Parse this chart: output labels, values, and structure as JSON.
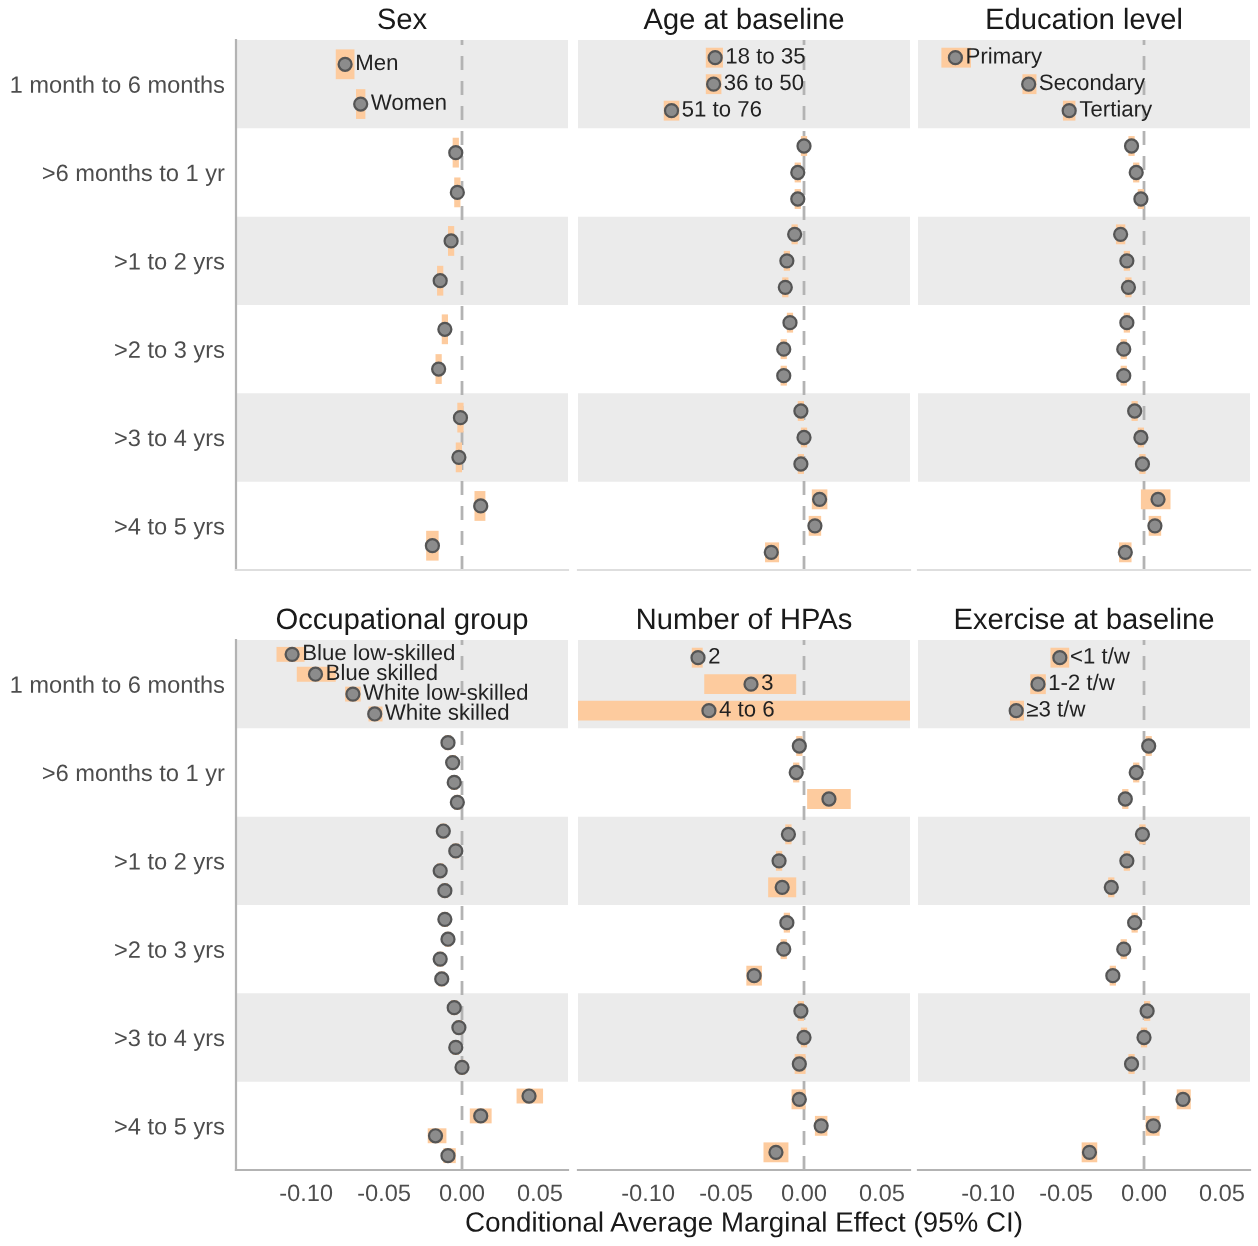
{
  "chart_data": [
    {
      "type": "scatter",
      "orientation": "horizontal",
      "title": "Sex",
      "tick_labels": "y",
      "marker": "circle",
      "grid": false,
      "categories": [
        "1 month to 6 months",
        ">6 months to 1 yr",
        ">1 to 2 yrs",
        ">2 to 3 yrs",
        ">3 to 4 yrs",
        ">4 to 5 yrs"
      ],
      "xlim": [
        -0.145,
        0.068
      ],
      "ref_lines": [
        {
          "axis": "x",
          "value": 0,
          "color": "#b3b3b3",
          "line_style": "dashed"
        }
      ],
      "bands": [
        {
          "axis": "y",
          "from": "1 month to 6 months",
          "to": "1 month to 6 months",
          "color": "#ebebeb"
        },
        {
          "axis": "y",
          "from": ">1 to 2 yrs",
          "to": ">1 to 2 yrs",
          "color": "#ebebeb"
        },
        {
          "axis": "y",
          "from": ">3 to 4 yrs",
          "to": ">3 to 4 yrs",
          "color": "#ebebeb"
        }
      ],
      "series": [
        {
          "name": "Men",
          "color": "#8c8c8c",
          "values": [
            -0.075,
            -0.004,
            -0.007,
            -0.011,
            -0.001,
            0.012
          ],
          "errors": [
            [
              -0.081,
              -0.069
            ],
            0.002,
            0.002,
            0.002,
            0.002,
            [
              0.008,
              0.015
            ]
          ]
        },
        {
          "name": "Women",
          "color": "#8c8c8c",
          "values": [
            -0.065,
            -0.003,
            -0.014,
            -0.015,
            -0.002,
            -0.019
          ],
          "errors": [
            [
              -0.068,
              -0.062
            ],
            0.002,
            0.002,
            0.002,
            0.002,
            [
              -0.023,
              -0.015
            ]
          ]
        }
      ]
    },
    {
      "type": "scatter",
      "orientation": "horizontal",
      "title": "Age at baseline",
      "tick_labels": false,
      "marker": "circle",
      "grid": false,
      "categories": [
        "1 month to 6 months",
        ">6 months to 1 yr",
        ">1 to 2 yrs",
        ">2 to 3 yrs",
        ">3 to 4 yrs",
        ">4 to 5 yrs"
      ],
      "xlim": [
        -0.145,
        0.068
      ],
      "ref_lines": [
        {
          "axis": "x",
          "value": 0,
          "color": "#b3b3b3",
          "line_style": "dashed"
        }
      ],
      "bands": [
        {
          "axis": "y",
          "from": "1 month to 6 months",
          "to": "1 month to 6 months",
          "color": "#ebebeb"
        },
        {
          "axis": "y",
          "from": ">1 to 2 yrs",
          "to": ">1 to 2 yrs",
          "color": "#ebebeb"
        },
        {
          "axis": "y",
          "from": ">3 to 4 yrs",
          "to": ">3 to 4 yrs",
          "color": "#ebebeb"
        }
      ],
      "series": [
        {
          "name": "18 to 35",
          "color": "#8c8c8c",
          "values": [
            -0.057,
            0.0,
            -0.006,
            -0.009,
            -0.002,
            0.01
          ],
          "errors": [
            [
              -0.063,
              -0.052
            ],
            0.002,
            0.002,
            0.002,
            0.002,
            [
              0.005,
              0.015
            ]
          ]
        },
        {
          "name": "36 to 50",
          "color": "#8c8c8c",
          "values": [
            -0.058,
            -0.004,
            -0.011,
            -0.013,
            0.0,
            0.007
          ],
          "errors": [
            [
              -0.063,
              -0.053
            ],
            0.002,
            0.002,
            0.002,
            0.002,
            [
              0.003,
              0.011
            ]
          ]
        },
        {
          "name": "51 to 76",
          "color": "#8c8c8c",
          "values": [
            -0.085,
            -0.004,
            -0.012,
            -0.013,
            -0.002,
            -0.021
          ],
          "errors": [
            [
              -0.09,
              -0.08
            ],
            0.002,
            0.002,
            0.002,
            0.002,
            [
              -0.025,
              -0.016
            ]
          ]
        }
      ]
    },
    {
      "type": "scatter",
      "orientation": "horizontal",
      "title": "Education level",
      "tick_labels": false,
      "marker": "circle",
      "grid": false,
      "categories": [
        "1 month to 6 months",
        ">6 months to 1 yr",
        ">1 to 2 yrs",
        ">2 to 3 yrs",
        ">3 to 4 yrs",
        ">4 to 5 yrs"
      ],
      "xlim": [
        -0.145,
        0.068
      ],
      "ref_lines": [
        {
          "axis": "x",
          "value": 0,
          "color": "#b3b3b3",
          "line_style": "dashed"
        }
      ],
      "bands": [
        {
          "axis": "y",
          "from": "1 month to 6 months",
          "to": "1 month to 6 months",
          "color": "#ebebeb"
        },
        {
          "axis": "y",
          "from": ">1 to 2 yrs",
          "to": ">1 to 2 yrs",
          "color": "#ebebeb"
        },
        {
          "axis": "y",
          "from": ">3 to 4 yrs",
          "to": ">3 to 4 yrs",
          "color": "#ebebeb"
        }
      ],
      "series": [
        {
          "name": "Primary",
          "color": "#8c8c8c",
          "values": [
            -0.121,
            -0.008,
            -0.015,
            -0.011,
            -0.006,
            0.009
          ],
          "errors": [
            [
              -0.13,
              -0.111
            ],
            0.002,
            0.003,
            0.002,
            0.002,
            [
              -0.002,
              0.017
            ]
          ]
        },
        {
          "name": "Secondary",
          "color": "#8c8c8c",
          "values": [
            -0.074,
            -0.005,
            -0.011,
            -0.013,
            -0.002,
            0.007
          ],
          "errors": [
            [
              -0.078,
              -0.069
            ],
            0.002,
            0.002,
            0.002,
            0.002,
            [
              0.003,
              0.011
            ]
          ]
        },
        {
          "name": "Tertiary",
          "color": "#8c8c8c",
          "values": [
            -0.048,
            -0.002,
            -0.01,
            -0.013,
            -0.001,
            -0.012
          ],
          "errors": [
            [
              -0.052,
              -0.044
            ],
            0.002,
            0.002,
            0.002,
            0.002,
            [
              -0.016,
              -0.008
            ]
          ]
        }
      ]
    },
    {
      "type": "scatter",
      "orientation": "horizontal",
      "title": "Occupational group",
      "marker": "circle",
      "grid": false,
      "categories": [
        "1 month to 6 months",
        ">6 months to 1 yr",
        ">1 to 2 yrs",
        ">2 to 3 yrs",
        ">3 to 4 yrs",
        ">4 to 5 yrs"
      ],
      "xlim": [
        -0.145,
        0.068
      ],
      "xticks": [
        {
          "value": -0.1,
          "label": "-0.10"
        },
        {
          "value": -0.05,
          "label": "-0.05"
        },
        {
          "value": 0,
          "label": "0.00"
        },
        {
          "value": 0.05,
          "label": "0.05"
        }
      ],
      "ref_lines": [
        {
          "axis": "x",
          "value": 0,
          "color": "#b3b3b3",
          "line_style": "dashed"
        }
      ],
      "bands": [
        {
          "axis": "y",
          "from": "1 month to 6 months",
          "to": "1 month to 6 months",
          "color": "#ebebeb"
        },
        {
          "axis": "y",
          "from": ">1 to 2 yrs",
          "to": ">1 to 2 yrs",
          "color": "#ebebeb"
        },
        {
          "axis": "y",
          "from": ">3 to 4 yrs",
          "to": ">3 to 4 yrs",
          "color": "#ebebeb"
        }
      ],
      "series": [
        {
          "name": "Blue low-skilled",
          "color": "#8c8c8c",
          "values": [
            -0.109,
            -0.009,
            -0.012,
            -0.011,
            -0.005,
            0.043
          ],
          "errors": [
            [
              -0.119,
              -0.101
            ],
            0.002,
            0.002,
            0.002,
            0.002,
            [
              0.035,
              0.052
            ]
          ]
        },
        {
          "name": "Blue skilled",
          "color": "#8c8c8c",
          "values": [
            -0.094,
            -0.006,
            -0.004,
            -0.009,
            -0.002,
            0.012
          ],
          "errors": [
            [
              -0.106,
              -0.081
            ],
            0.002,
            0.002,
            0.002,
            0.002,
            [
              0.005,
              0.019
            ]
          ]
        },
        {
          "name": "White low-skilled",
          "color": "#8c8c8c",
          "values": [
            -0.07,
            -0.005,
            -0.014,
            -0.014,
            -0.004,
            -0.017
          ],
          "errors": [
            [
              -0.075,
              -0.065
            ],
            0.002,
            0.002,
            0.002,
            0.002,
            [
              -0.022,
              -0.01
            ]
          ]
        },
        {
          "name": "White skilled",
          "color": "#8c8c8c",
          "values": [
            -0.056,
            -0.003,
            -0.011,
            -0.013,
            0.0,
            -0.009
          ],
          "errors": [
            [
              -0.06,
              -0.051
            ],
            0.002,
            0.002,
            0.002,
            0.002,
            [
              -0.012,
              -0.004
            ]
          ]
        }
      ]
    },
    {
      "type": "scatter",
      "orientation": "horizontal",
      "title": "Number of HPAs",
      "tick_labels": "x",
      "xlabel": "Conditional Average Marginal Effect (95% CI)",
      "marker": "circle",
      "grid": false,
      "categories": [
        "1 month to 6 months",
        ">6 months to 1 yr",
        ">1 to 2 yrs",
        ">2 to 3 yrs",
        ">3 to 4 yrs",
        ">4 to 5 yrs"
      ],
      "xlim": [
        -0.145,
        0.068
      ],
      "xticks": [
        {
          "value": -0.1,
          "label": "-0.10"
        },
        {
          "value": -0.05,
          "label": "-0.05"
        },
        {
          "value": 0,
          "label": "0.00"
        },
        {
          "value": 0.05,
          "label": "0.05"
        }
      ],
      "ref_lines": [
        {
          "axis": "x",
          "value": 0,
          "color": "#b3b3b3",
          "line_style": "dashed"
        }
      ],
      "bands": [
        {
          "axis": "y",
          "from": "1 month to 6 months",
          "to": "1 month to 6 months",
          "color": "#ebebeb"
        },
        {
          "axis": "y",
          "from": ">1 to 2 yrs",
          "to": ">1 to 2 yrs",
          "color": "#ebebeb"
        },
        {
          "axis": "y",
          "from": ">3 to 4 yrs",
          "to": ">3 to 4 yrs",
          "color": "#ebebeb"
        }
      ],
      "series": [
        {
          "name": "2",
          "color": "#8c8c8c",
          "values": [
            -0.068,
            -0.003,
            -0.01,
            -0.011,
            -0.002,
            -0.003
          ],
          "errors": [
            [
              -0.072,
              -0.065
            ],
            0.002,
            0.002,
            0.002,
            0.002,
            [
              -0.008,
              0.001
            ]
          ]
        },
        {
          "name": "3",
          "color": "#8c8c8c",
          "values": [
            -0.034,
            -0.005,
            -0.016,
            -0.013,
            0.0,
            0.011
          ],
          "errors": [
            [
              -0.064,
              -0.005
            ],
            0.002,
            0.002,
            0.002,
            0.002,
            [
              0.007,
              0.015
            ]
          ]
        },
        {
          "name": "4 to 6",
          "color": "#8c8c8c",
          "values": [
            -0.061,
            0.016,
            -0.014,
            -0.032,
            -0.003,
            -0.018
          ],
          "errors": [
            [
              -0.145,
              0.068
            ],
            [
              0.002,
              0.03
            ],
            [
              -0.023,
              -0.005
            ],
            [
              -0.037,
              -0.027
            ],
            [
              -0.006,
              0.001
            ],
            [
              -0.026,
              -0.01
            ]
          ]
        }
      ]
    },
    {
      "type": "scatter",
      "orientation": "horizontal",
      "title": "Exercise at baseline",
      "tick_labels": "x",
      "marker": "circle",
      "grid": false,
      "categories": [
        "1 month to 6 months",
        ">6 months to 1 yr",
        ">1 to 2 yrs",
        ">2 to 3 yrs",
        ">3 to 4 yrs",
        ">4 to 5 yrs"
      ],
      "xlim": [
        -0.145,
        0.068
      ],
      "xticks": [
        {
          "value": -0.1,
          "label": "-0.10"
        },
        {
          "value": -0.05,
          "label": "-0.05"
        },
        {
          "value": 0,
          "label": "0.00"
        },
        {
          "value": 0.05,
          "label": "0.05"
        }
      ],
      "ref_lines": [
        {
          "axis": "x",
          "value": 0,
          "color": "#b3b3b3",
          "line_style": "dashed"
        }
      ],
      "bands": [
        {
          "axis": "y",
          "from": "1 month to 6 months",
          "to": "1 month to 6 months",
          "color": "#ebebeb"
        },
        {
          "axis": "y",
          "from": ">1 to 2 yrs",
          "to": ">1 to 2 yrs",
          "color": "#ebebeb"
        },
        {
          "axis": "y",
          "from": ">3 to 4 yrs",
          "to": ">3 to 4 yrs",
          "color": "#ebebeb"
        }
      ],
      "series": [
        {
          "name": "<1 t/w",
          "color": "#8c8c8c",
          "values": [
            -0.054,
            0.003,
            -0.001,
            -0.006,
            0.002,
            0.025
          ],
          "errors": [
            [
              -0.06,
              -0.048
            ],
            0.002,
            0.002,
            0.002,
            0.002,
            [
              0.021,
              0.03
            ]
          ]
        },
        {
          "name": "1-2 t/w",
          "color": "#8c8c8c",
          "values": [
            -0.068,
            -0.005,
            -0.011,
            -0.013,
            0.0,
            0.006
          ],
          "errors": [
            [
              -0.073,
              -0.063
            ],
            0.002,
            0.002,
            0.002,
            0.002,
            [
              0.001,
              0.01
            ]
          ]
        },
        {
          "name": "≥3 t/w",
          "color": "#8c8c8c",
          "values": [
            -0.082,
            -0.012,
            -0.021,
            -0.02,
            -0.008,
            -0.035
          ],
          "errors": [
            [
              -0.086,
              -0.077
            ],
            0.002,
            0.002,
            0.002,
            0.002,
            [
              -0.04,
              -0.03
            ]
          ]
        }
      ]
    }
  ]
}
